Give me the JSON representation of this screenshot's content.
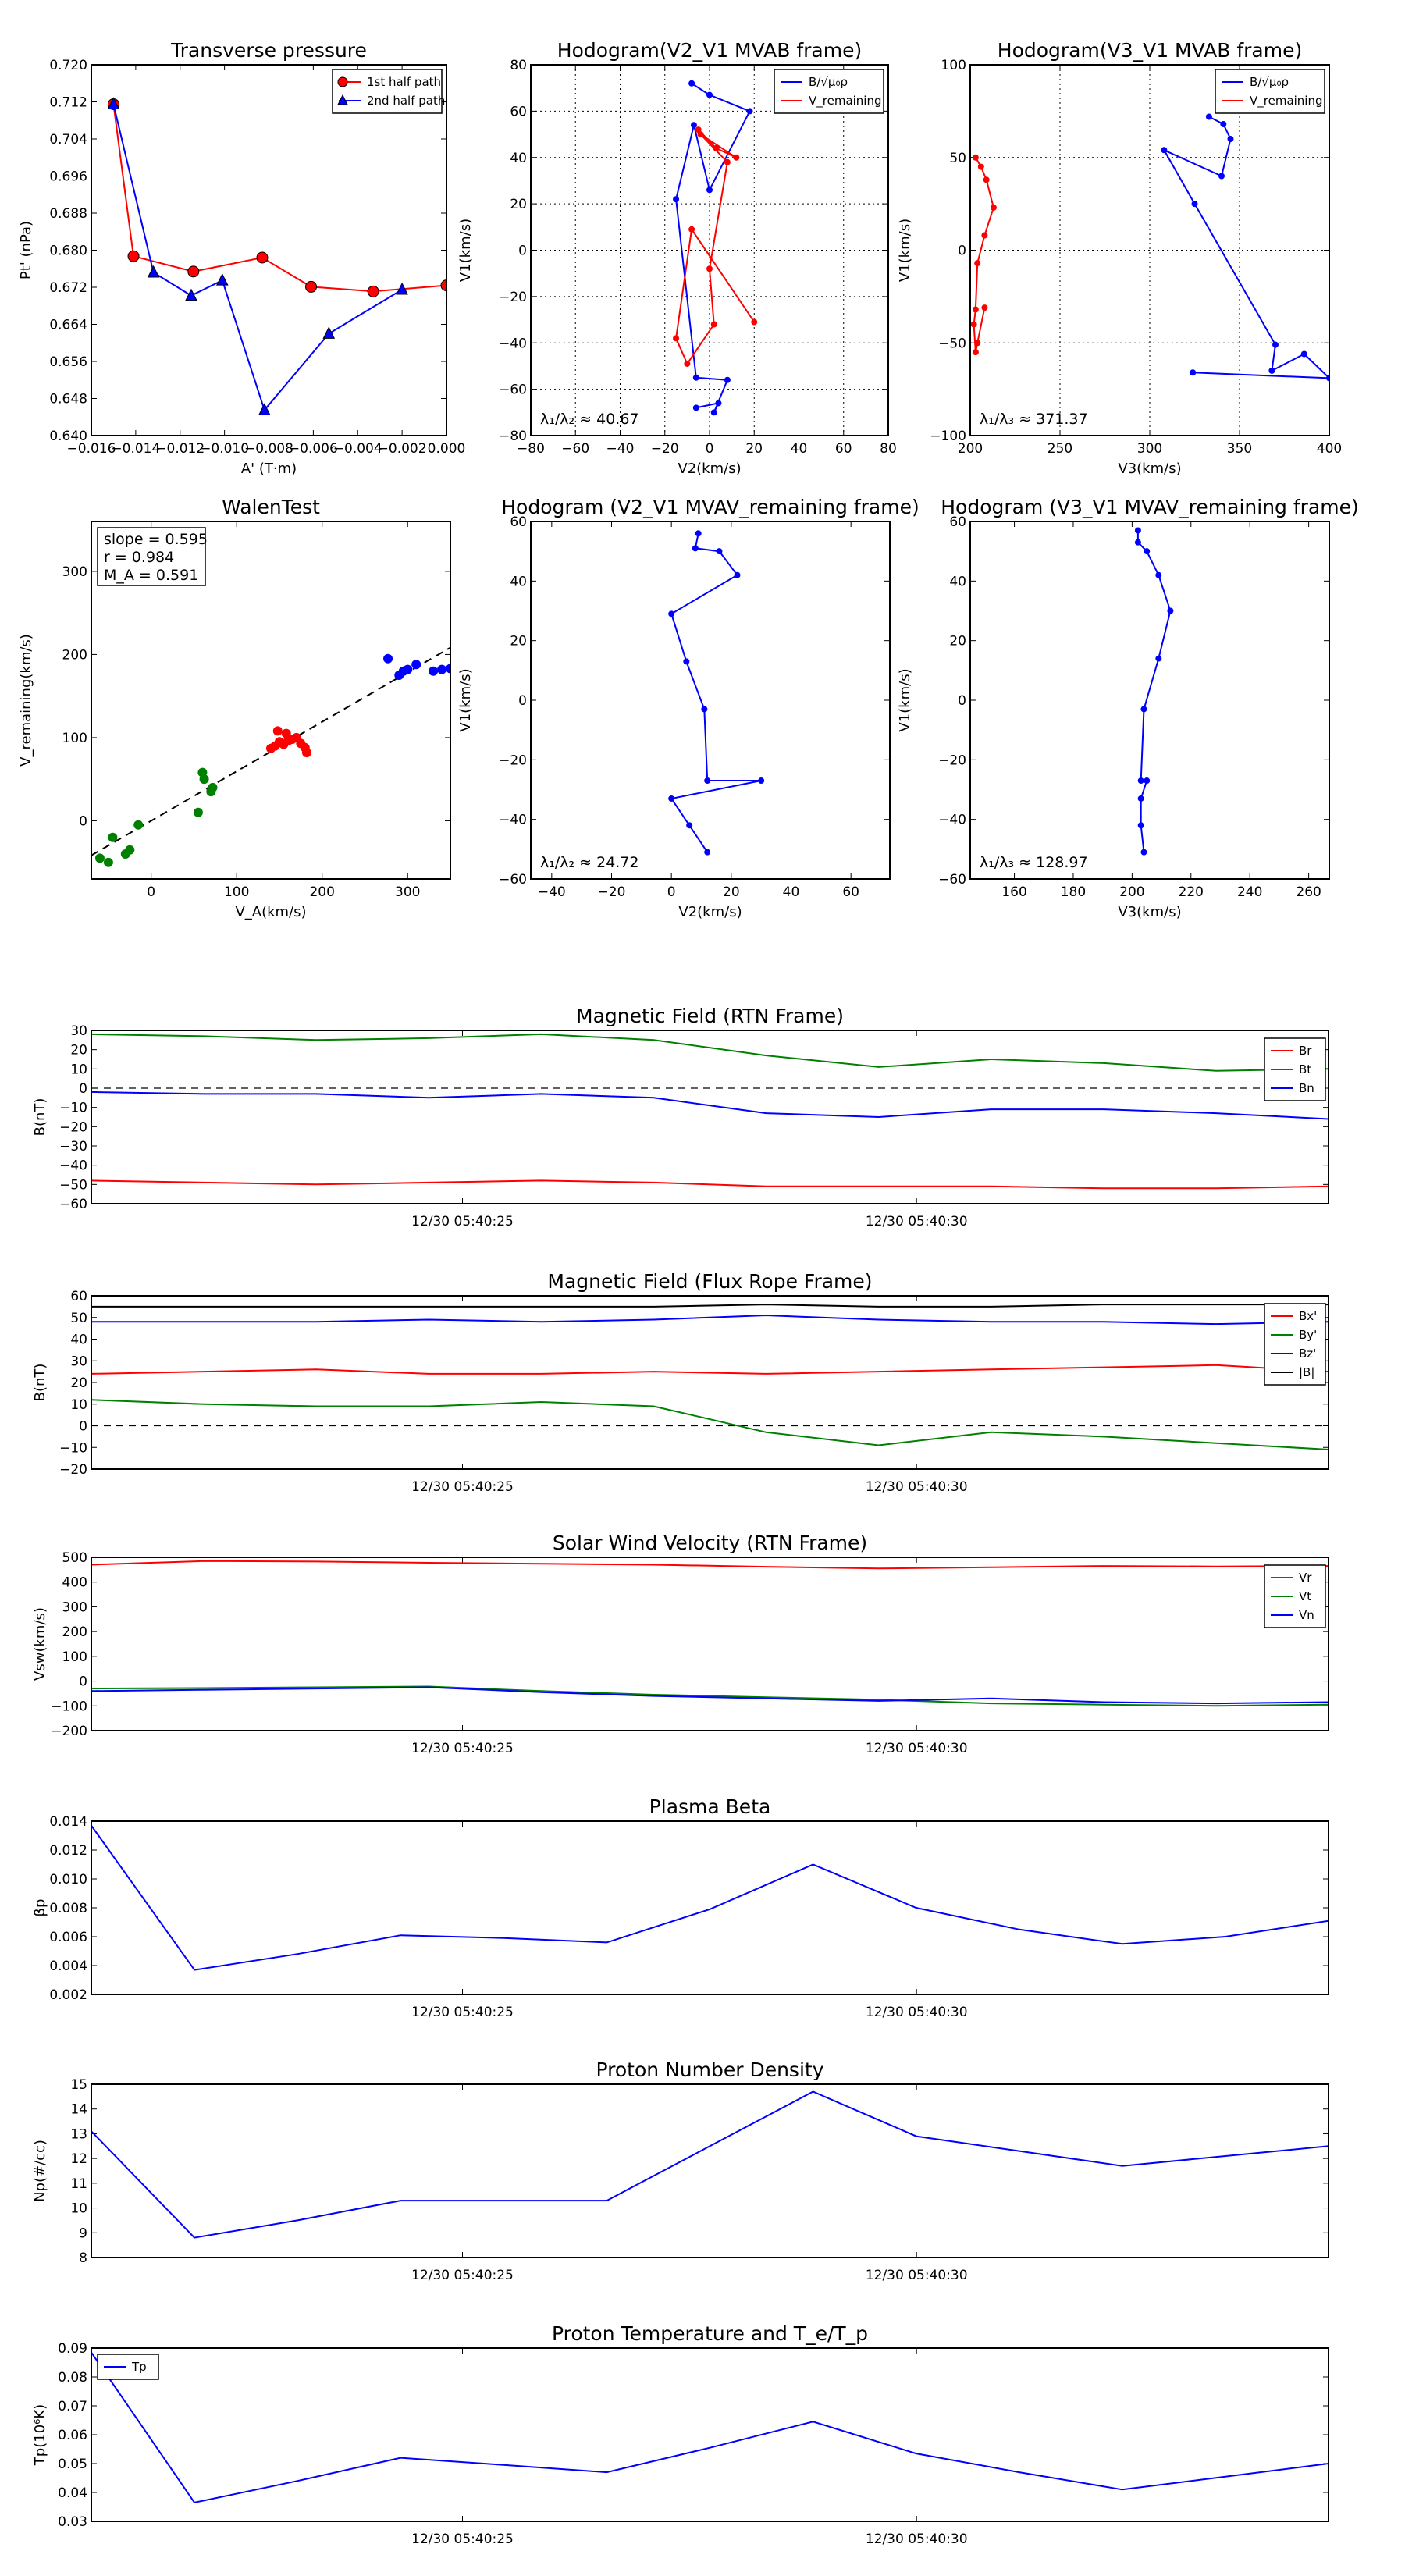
{
  "chart_data": [
    {
      "type": "line",
      "title": "Transverse pressure",
      "xlabel": "A' (T·m)",
      "ylabel": "Pt' (nPa)",
      "xlim": [
        -0.016,
        0.0
      ],
      "ylim": [
        0.64,
        0.72
      ],
      "xticks": [
        -0.016,
        -0.014,
        -0.012,
        -0.01,
        -0.008,
        -0.006,
        -0.004,
        -0.002,
        0.0
      ],
      "xticklabels": [
        "−0.016",
        "−0.014",
        "−0.012",
        "−0.010",
        "−0.008",
        "−0.006",
        "−0.004",
        "−0.002",
        "0.000"
      ],
      "yticks": [
        0.64,
        0.648,
        0.656,
        0.664,
        0.672,
        0.68,
        0.688,
        0.696,
        0.704,
        0.712,
        0.72
      ],
      "yticklabels": [
        "0.640",
        "0.648",
        "0.656",
        "0.664",
        "0.672",
        "0.680",
        "0.688",
        "0.696",
        "0.704",
        "0.712",
        "0.720"
      ],
      "legend": {
        "location": "top-right"
      },
      "series": [
        {
          "name": "1st half path",
          "color": "#ff0000",
          "marker": "circle",
          "x": [
            -0.015,
            -0.0141,
            -0.0114,
            -0.0083,
            -0.0061,
            -0.0033,
            0.0
          ],
          "y": [
            0.7115,
            0.6787,
            0.6754,
            0.6784,
            0.6721,
            0.6711,
            0.6724
          ]
        },
        {
          "name": "2nd half path",
          "color": "#0000ff",
          "marker": "triangle",
          "x": [
            -0.015,
            -0.0132,
            -0.0115,
            -0.0101,
            -0.0082,
            -0.0053,
            -0.002
          ],
          "y": [
            0.7115,
            0.6752,
            0.6702,
            0.6735,
            0.6455,
            0.662,
            0.6715
          ]
        }
      ]
    },
    {
      "type": "line",
      "title": "Hodogram(V2_V1 MVAB frame)",
      "xlabel": "V2(km/s)",
      "ylabel": "V1(km/s)",
      "xlim": [
        -80,
        80
      ],
      "ylim": [
        -80,
        80
      ],
      "xticks": [
        -80,
        -60,
        -40,
        -20,
        0,
        20,
        40,
        60,
        80
      ],
      "xticklabels": [
        "−80",
        "−60",
        "−40",
        "−20",
        "0",
        "20",
        "40",
        "60",
        "80"
      ],
      "yticks": [
        -80,
        -60,
        -40,
        -20,
        0,
        20,
        40,
        60,
        80
      ],
      "yticklabels": [
        "−80",
        "−60",
        "−40",
        "−20",
        "0",
        "20",
        "40",
        "60",
        "80"
      ],
      "grid": true,
      "legend": {
        "location": "top-right"
      },
      "annotation": "λ₁/λ₂ ≈ 40.67",
      "series": [
        {
          "name": "B/√μ₀ρ",
          "color": "#0000ff",
          "x": [
            -8,
            0,
            18,
            0,
            -7,
            -15,
            -6,
            8,
            2,
            4,
            -6
          ],
          "y": [
            72,
            67,
            60,
            26,
            54,
            22,
            -55,
            -56,
            -70,
            -66,
            -68
          ]
        },
        {
          "name": "V_remaining",
          "color": "#ff0000",
          "x": [
            -5,
            3,
            12,
            -4,
            8,
            0,
            2,
            -10,
            -15,
            -8,
            20
          ],
          "y": [
            52,
            44,
            40,
            50,
            38,
            -8,
            -32,
            -49,
            -38,
            9,
            -31
          ]
        }
      ]
    },
    {
      "type": "line",
      "title": "Hodogram(V3_V1 MVAB frame)",
      "xlabel": "V3(km/s)",
      "ylabel": "V1(km/s)",
      "xlim": [
        200,
        400
      ],
      "ylim": [
        -100,
        100
      ],
      "xticks": [
        200,
        250,
        300,
        350,
        400
      ],
      "xticklabels": [
        "200",
        "250",
        "300",
        "350",
        "400"
      ],
      "yticks": [
        -100,
        -50,
        0,
        50,
        100
      ],
      "yticklabels": [
        "−100",
        "−50",
        "0",
        "50",
        "100"
      ],
      "grid": true,
      "legend": {
        "location": "top-right"
      },
      "annotation": "λ₁/λ₃ ≈ 371.37",
      "series": [
        {
          "name": "B/√μ₀ρ",
          "color": "#0000ff",
          "x": [
            333,
            341,
            345,
            340,
            308,
            325,
            370,
            368,
            386,
            400,
            324
          ],
          "y": [
            72,
            68,
            60,
            40,
            54,
            25,
            -51,
            -65,
            -56,
            -69,
            -66
          ]
        },
        {
          "name": "V_remaining",
          "color": "#ff0000",
          "x": [
            203,
            206,
            209,
            213,
            208,
            204,
            203,
            202,
            203,
            204,
            208
          ],
          "y": [
            50,
            45,
            38,
            23,
            8,
            -7,
            -32,
            -40,
            -55,
            -50,
            -31
          ]
        }
      ]
    },
    {
      "type": "scatter",
      "title": "WalenTest",
      "xlabel": "V_A(km/s)",
      "ylabel": "V_remaining(km/s)",
      "xlim": [
        -70,
        350
      ],
      "ylim": [
        -70,
        360
      ],
      "xticks": [
        0,
        100,
        200,
        300
      ],
      "xticklabels": [
        "0",
        "100",
        "200",
        "300"
      ],
      "yticks": [
        0,
        100,
        200,
        300
      ],
      "yticklabels": [
        "0",
        "100",
        "200",
        "300"
      ],
      "fit_line": {
        "slope": 0.595,
        "intercept": 0,
        "style": "dashed"
      },
      "annotation": [
        "slope = 0.595",
        "r = 0.984",
        "M_A = 0.591"
      ],
      "series": [
        {
          "name": "green group",
          "color": "#008000",
          "x": [
            -60,
            -50,
            -45,
            -30,
            -15,
            -25,
            60,
            62,
            55,
            70,
            72
          ],
          "y": [
            -45,
            -50,
            -20,
            -40,
            -5,
            -35,
            58,
            50,
            10,
            35,
            40
          ]
        },
        {
          "name": "red group",
          "color": "#ff0000",
          "x": [
            140,
            145,
            150,
            155,
            160,
            165,
            170,
            175,
            180,
            182,
            148,
            158
          ],
          "y": [
            87,
            90,
            95,
            92,
            96,
            98,
            100,
            93,
            88,
            82,
            108,
            105
          ]
        },
        {
          "name": "blue group",
          "color": "#0000ff",
          "x": [
            277,
            290,
            295,
            300,
            310,
            330,
            340,
            350
          ],
          "y": [
            195,
            175,
            180,
            182,
            188,
            180,
            182,
            183
          ]
        }
      ]
    },
    {
      "type": "line",
      "title": "Hodogram (V2_V1 MVAV_remaining frame)",
      "xlabel": "V2(km/s)",
      "ylabel": "V1(km/s)",
      "xlim": [
        -47,
        73
      ],
      "ylim": [
        -60,
        60
      ],
      "xticks": [
        -40,
        -20,
        0,
        20,
        40,
        60
      ],
      "xticklabels": [
        "−40",
        "−20",
        "0",
        "20",
        "40",
        "60"
      ],
      "yticks": [
        -60,
        -40,
        -20,
        0,
        20,
        40,
        60
      ],
      "yticklabels": [
        "−60",
        "−40",
        "−20",
        "0",
        "20",
        "40",
        "60"
      ],
      "annotation": "λ₁/λ₂ ≈ 24.72",
      "series": [
        {
          "name": "V_remaining",
          "color": "#0000ff",
          "x": [
            9,
            8,
            16,
            22,
            0,
            5,
            11,
            12,
            30,
            0,
            6,
            12
          ],
          "y": [
            56,
            51,
            50,
            42,
            29,
            13,
            -3,
            -27,
            -27,
            -33,
            -42,
            -51
          ]
        }
      ]
    },
    {
      "type": "line",
      "title": "Hodogram (V3_V1 MVAV_remaining frame)",
      "xlabel": "V3(km/s)",
      "ylabel": "V1(km/s)",
      "xlim": [
        145,
        267
      ],
      "ylim": [
        -60,
        60
      ],
      "xticks": [
        160,
        180,
        200,
        220,
        240,
        260
      ],
      "xticklabels": [
        "160",
        "180",
        "200",
        "220",
        "240",
        "260"
      ],
      "yticks": [
        -60,
        -40,
        -20,
        0,
        20,
        40,
        60
      ],
      "yticklabels": [
        "−60",
        "−40",
        "−20",
        "0",
        "20",
        "40",
        "60"
      ],
      "annotation": "λ₁/λ₃ ≈ 128.97",
      "series": [
        {
          "name": "V_remaining",
          "color": "#0000ff",
          "x": [
            202,
            202,
            205,
            209,
            213,
            209,
            204,
            203,
            205,
            203,
            203,
            204
          ],
          "y": [
            57,
            53,
            50,
            42,
            30,
            14,
            -3,
            -27,
            -27,
            -33,
            -42,
            -51
          ]
        }
      ]
    },
    {
      "type": "line",
      "title": "Magnetic Field (RTN Frame)",
      "ylabel": "B(nT)",
      "ylim": [
        -60,
        30
      ],
      "yticks": [
        -60,
        -50,
        -40,
        -30,
        -20,
        -10,
        0,
        10,
        20,
        30
      ],
      "yticklabels": [
        "−60",
        "−50",
        "−40",
        "−30",
        "−20",
        "−10",
        "0",
        "10",
        "20",
        "30"
      ],
      "xtick_labels": [
        "12/30 05:40:25",
        "12/30 05:40:30"
      ],
      "xtick_positions": [
        0.3,
        0.667
      ],
      "zero_line": true,
      "legend": {
        "location": "right"
      },
      "series": [
        {
          "name": "Br",
          "color": "#ff0000",
          "values": [
            -48,
            -49,
            -50,
            -49,
            -48,
            -49,
            -51,
            -51,
            -51,
            -52,
            -52,
            -51
          ]
        },
        {
          "name": "Bt",
          "color": "#008000",
          "values": [
            28,
            27,
            25,
            26,
            28,
            25,
            17,
            11,
            15,
            13,
            9,
            10
          ]
        },
        {
          "name": "Bn",
          "color": "#0000ff",
          "values": [
            -2,
            -3,
            -3,
            -5,
            -3,
            -5,
            -13,
            -15,
            -11,
            -11,
            -13,
            -16
          ]
        }
      ]
    },
    {
      "type": "line",
      "title": "Magnetic Field (Flux Rope Frame)",
      "ylabel": "B(nT)",
      "ylim": [
        -20,
        60
      ],
      "yticks": [
        -20,
        -10,
        0,
        10,
        20,
        30,
        40,
        50,
        60
      ],
      "yticklabels": [
        "−20",
        "−10",
        "0",
        "10",
        "20",
        "30",
        "40",
        "50",
        "60"
      ],
      "xtick_labels": [
        "12/30 05:40:25",
        "12/30 05:40:30"
      ],
      "xtick_positions": [
        0.3,
        0.667
      ],
      "zero_line": true,
      "legend": {
        "location": "right"
      },
      "series": [
        {
          "name": "Bx'",
          "color": "#ff0000",
          "values": [
            24,
            25,
            26,
            24,
            24,
            25,
            24,
            25,
            26,
            27,
            28,
            25
          ]
        },
        {
          "name": "By'",
          "color": "#008000",
          "values": [
            12,
            10,
            9,
            9,
            11,
            9,
            -3,
            -9,
            -3,
            -5,
            -8,
            -11
          ]
        },
        {
          "name": "Bz'",
          "color": "#0000ff",
          "values": [
            48,
            48,
            48,
            49,
            48,
            49,
            51,
            49,
            48,
            48,
            47,
            48
          ]
        },
        {
          "name": "|B|",
          "color": "#000000",
          "values": [
            55,
            55,
            55,
            55,
            55,
            55,
            56,
            55,
            55,
            56,
            56,
            56
          ]
        }
      ]
    },
    {
      "type": "line",
      "title": "Solar Wind Velocity (RTN Frame)",
      "ylabel": "Vsw(km/s)",
      "ylim": [
        -200,
        500
      ],
      "yticks": [
        -200,
        -100,
        0,
        100,
        200,
        300,
        400,
        500
      ],
      "yticklabels": [
        "−200",
        "−100",
        "0",
        "100",
        "200",
        "300",
        "400",
        "500"
      ],
      "xtick_labels": [
        "12/30 05:40:25",
        "12/30 05:40:30"
      ],
      "xtick_positions": [
        0.3,
        0.667
      ],
      "legend": {
        "location": "right"
      },
      "series": [
        {
          "name": "Vr",
          "color": "#ff0000",
          "values": [
            470,
            485,
            483,
            478,
            474,
            470,
            462,
            455,
            460,
            465,
            463,
            465
          ]
        },
        {
          "name": "Vt",
          "color": "#008000",
          "values": [
            -30,
            -28,
            -25,
            -22,
            -40,
            -55,
            -65,
            -75,
            -90,
            -95,
            -100,
            -95
          ]
        },
        {
          "name": "Vn",
          "color": "#0000ff",
          "values": [
            -40,
            -35,
            -30,
            -25,
            -45,
            -60,
            -70,
            -80,
            -70,
            -85,
            -90,
            -85
          ]
        }
      ]
    },
    {
      "type": "line",
      "title": "Plasma Beta",
      "ylabel": "βp",
      "ylim": [
        0.002,
        0.014
      ],
      "yticks": [
        0.002,
        0.004,
        0.006,
        0.008,
        0.01,
        0.012,
        0.014
      ],
      "yticklabels": [
        "0.002",
        "0.004",
        "0.006",
        "0.008",
        "0.010",
        "0.012",
        "0.014"
      ],
      "xtick_labels": [
        "12/30 05:40:25",
        "12/30 05:40:30"
      ],
      "xtick_positions": [
        0.3,
        0.667
      ],
      "series": [
        {
          "name": "βp",
          "color": "#0000ff",
          "values": [
            0.0137,
            0.0037,
            0.0048,
            0.0061,
            0.0059,
            0.0056,
            0.0079,
            0.011,
            0.008,
            0.0065,
            0.0055,
            0.006,
            0.0071
          ]
        }
      ]
    },
    {
      "type": "line",
      "title": "Proton Number Density",
      "ylabel": "Np(#/cc)",
      "ylim": [
        8,
        15
      ],
      "yticks": [
        8,
        9,
        10,
        11,
        12,
        13,
        14,
        15
      ],
      "yticklabels": [
        "8",
        "9",
        "10",
        "11",
        "12",
        "13",
        "14",
        "15"
      ],
      "xtick_labels": [
        "12/30 05:40:25",
        "12/30 05:40:30"
      ],
      "xtick_positions": [
        0.3,
        0.667
      ],
      "series": [
        {
          "name": "Np",
          "color": "#0000ff",
          "values": [
            13.1,
            8.8,
            9.5,
            10.3,
            10.3,
            10.3,
            12.5,
            14.7,
            12.9,
            12.3,
            11.7,
            12.1,
            12.5
          ]
        }
      ]
    },
    {
      "type": "line",
      "title": "Proton Temperature and T_e/T_p",
      "ylabel": "Tp(10⁶K)",
      "ylim": [
        0.03,
        0.09
      ],
      "yticks": [
        0.03,
        0.04,
        0.05,
        0.06,
        0.07,
        0.08,
        0.09
      ],
      "yticklabels": [
        "0.03",
        "0.04",
        "0.05",
        "0.06",
        "0.07",
        "0.08",
        "0.09"
      ],
      "xtick_labels": [
        "12/30 05:40:25",
        "12/30 05:40:30"
      ],
      "xtick_positions": [
        0.3,
        0.667
      ],
      "legend": {
        "location": "top-left"
      },
      "series": [
        {
          "name": "Tp",
          "color": "#0000ff",
          "values": [
            0.0885,
            0.0365,
            0.044,
            0.052,
            0.0495,
            0.047,
            0.0555,
            0.0645,
            0.0535,
            0.047,
            0.041,
            0.0455,
            0.05
          ]
        }
      ]
    }
  ]
}
